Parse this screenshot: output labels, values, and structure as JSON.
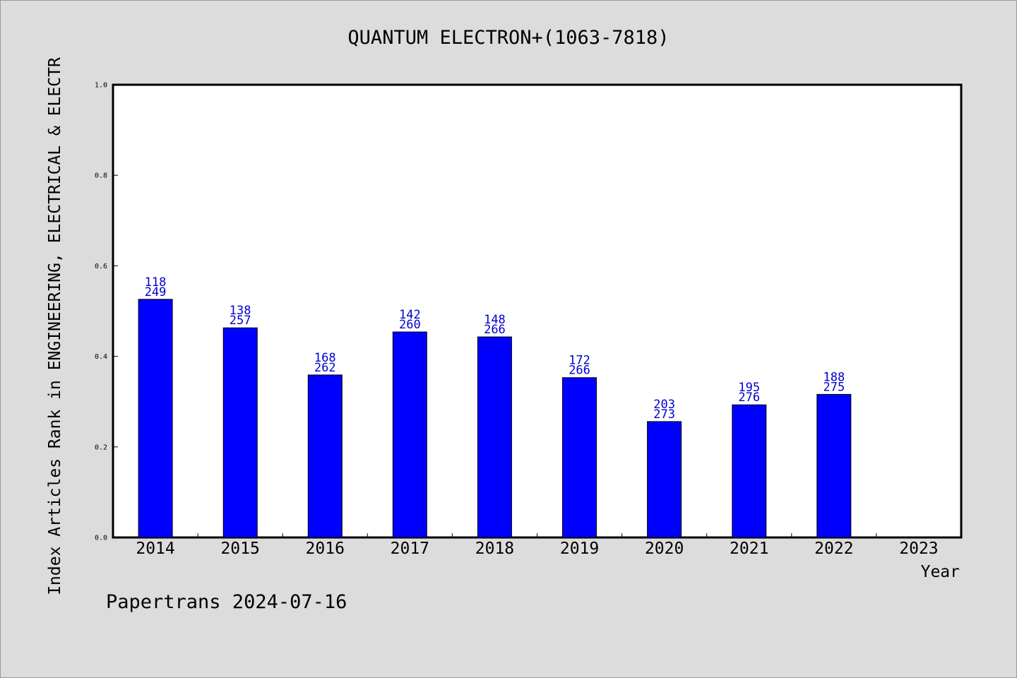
{
  "chart_data": {
    "type": "bar",
    "title": "QUANTUM ELECTRON+(1063-7818)",
    "ylabel": "Index Articles Rank in ENGINEERING, ELECTRICAL & ELECTR",
    "xlabel": "Year",
    "ylim": [
      0.0,
      1.0
    ],
    "yticks": [
      "0.0",
      "0.2",
      "0.4",
      "0.6",
      "0.8",
      "1.0"
    ],
    "categories": [
      "2014",
      "2015",
      "2016",
      "2017",
      "2018",
      "2019",
      "2020",
      "2021",
      "2022",
      "2023"
    ],
    "values": [
      0.526,
      0.463,
      0.359,
      0.454,
      0.443,
      0.353,
      0.256,
      0.293,
      0.316,
      null
    ],
    "labels_top": [
      "118",
      "138",
      "168",
      "142",
      "148",
      "172",
      "203",
      "195",
      "188",
      ""
    ],
    "labels_bottom": [
      "249",
      "257",
      "262",
      "260",
      "266",
      "266",
      "273",
      "276",
      "275",
      ""
    ],
    "bar_color": "#0000ff",
    "label_color": "#0000cc",
    "grid": false,
    "footer": "Papertrans 2024-07-16"
  }
}
